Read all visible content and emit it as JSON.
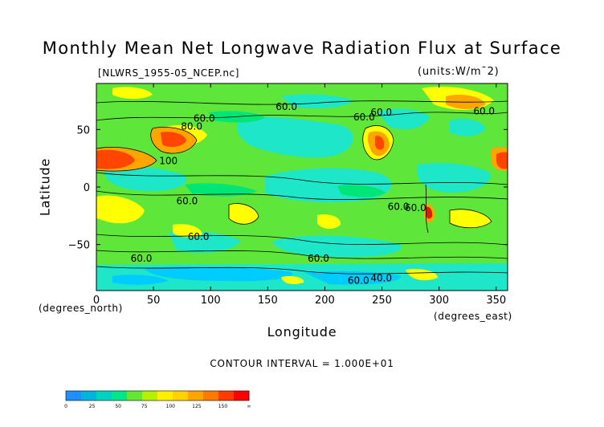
{
  "chart_data": {
    "type": "heatmap",
    "title": "Monthly Mean Net Longwave Radiation Flux at Surface",
    "subtitle_left": "[NLWRS_1955-05_NCEP.nc]",
    "subtitle_right": "(units:W/m¯2)",
    "xlabel": "Longitude",
    "ylabel": "Latitude",
    "x_axis_note": "(degrees_north)",
    "x_unit_note": "(degrees_east)",
    "contour_interval_text": "CONTOUR INTERVAL = 1.000E+01",
    "xlim": [
      0,
      360
    ],
    "ylim": [
      -90,
      90
    ],
    "x_ticks": [
      "0",
      "50",
      "100",
      "150",
      "200",
      "250",
      "300",
      "350"
    ],
    "x_tick_values": [
      0,
      50,
      100,
      150,
      200,
      250,
      300,
      350
    ],
    "y_ticks": [
      "50",
      "0",
      "−50"
    ],
    "y_tick_values": [
      50,
      0,
      -50
    ],
    "contour_labels": [
      {
        "text": "60.0",
        "lon": 157,
        "lat": 67
      },
      {
        "text": "60.0",
        "lon": 85,
        "lat": 57
      },
      {
        "text": "80.0",
        "lon": 74,
        "lat": 50
      },
      {
        "text": "60.0",
        "lon": 225,
        "lat": 58
      },
      {
        "text": "60.0",
        "lon": 240,
        "lat": 62
      },
      {
        "text": "60.0",
        "lon": 330,
        "lat": 63
      },
      {
        "text": "100",
        "lon": 55,
        "lat": 20
      },
      {
        "text": "60.0",
        "lon": 70,
        "lat": -15
      },
      {
        "text": "60.0",
        "lon": 255,
        "lat": -20
      },
      {
        "text": "60.0",
        "lon": 270,
        "lat": -21
      },
      {
        "text": "60.0",
        "lon": 80,
        "lat": -46
      },
      {
        "text": "60.0",
        "lon": 30,
        "lat": -65
      },
      {
        "text": "60.0",
        "lon": 185,
        "lat": -65
      },
      {
        "text": "60.0",
        "lon": 220,
        "lat": -84
      },
      {
        "text": "40.0",
        "lon": 240,
        "lat": -82
      }
    ],
    "colorbar": {
      "ticks": [
        "0",
        "25",
        "50",
        "75",
        "100",
        "125",
        "150",
        "∞"
      ],
      "colors": [
        "#1e90ff",
        "#00b4e0",
        "#00d2c0",
        "#00e68c",
        "#64e632",
        "#b4f000",
        "#fff000",
        "#ffd200",
        "#ffa500",
        "#ff7800",
        "#ff3c00",
        "#ff0000"
      ]
    },
    "field_colors": {
      "c10": "#00ccff",
      "c20": "#2fd6b4",
      "c40": "#1ee6c8",
      "c50": "#00e676",
      "c60": "#5fe63a",
      "c70": "#9ff00a",
      "c80": "#ffff00",
      "c90": "#ffd200",
      "c100": "#ffa500",
      "c110": "#ff6a00",
      "c120": "#ff4500",
      "c130": "#dc1e00"
    }
  }
}
